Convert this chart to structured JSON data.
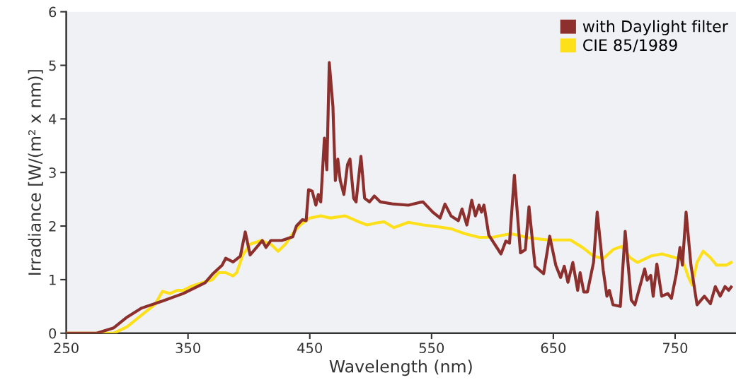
{
  "chart_data": {
    "type": "line",
    "xlabel": "Wavelength (nm)",
    "ylabel": "Irradiance [W/(m² x nm)]",
    "xlim": [
      250,
      800
    ],
    "xticks": [
      250,
      350,
      450,
      550,
      650,
      750
    ],
    "ylim": [
      0,
      6
    ],
    "yticks": [
      0,
      1,
      2,
      3,
      4,
      5,
      6
    ],
    "grid": false,
    "legend": "top right",
    "marker": "none",
    "line_style": "solid",
    "series": [
      {
        "name": "with Daylight filter",
        "color": "#8c2f2d",
        "x": [
          250,
          275,
          289,
          300,
          312,
          329,
          346,
          364,
          370,
          378,
          381,
          387,
          393,
          397,
          401,
          407,
          411,
          414,
          418,
          427,
          436,
          439,
          444,
          447,
          449,
          452,
          455,
          457,
          459,
          462,
          464,
          466,
          469,
          471,
          473,
          475,
          478,
          481,
          483,
          486,
          488,
          492,
          495,
          499,
          503,
          508,
          519,
          531,
          540,
          543,
          551,
          557,
          561,
          566,
          572,
          575,
          579,
          583,
          586,
          589,
          591,
          593,
          594,
          597,
          607,
          611,
          614,
          618,
          623,
          627,
          630,
          635,
          642,
          647,
          652,
          656,
          659,
          662,
          666,
          670,
          672,
          675,
          678,
          683,
          686,
          691,
          694,
          696,
          699,
          705,
          709,
          714,
          717,
          725,
          727,
          730,
          732,
          735,
          739,
          744,
          747,
          751,
          754,
          756,
          759,
          763,
          768,
          774,
          779,
          783,
          787,
          791,
          794,
          796
        ],
        "values": [
          0,
          0,
          0.1,
          0.3,
          0.47,
          0.6,
          0.74,
          0.94,
          1.1,
          1.27,
          1.4,
          1.33,
          1.44,
          1.89,
          1.46,
          1.62,
          1.73,
          1.6,
          1.73,
          1.73,
          1.8,
          2.0,
          2.12,
          2.1,
          2.68,
          2.65,
          2.39,
          2.59,
          2.45,
          3.64,
          3.05,
          5.05,
          4.23,
          2.85,
          3.25,
          2.85,
          2.59,
          3.15,
          3.25,
          2.52,
          2.45,
          3.3,
          2.52,
          2.45,
          2.56,
          2.45,
          2.41,
          2.39,
          2.44,
          2.45,
          2.26,
          2.15,
          2.41,
          2.19,
          2.1,
          2.32,
          2.02,
          2.48,
          2.19,
          2.39,
          2.26,
          2.39,
          2.26,
          1.83,
          1.48,
          1.72,
          1.68,
          2.95,
          1.5,
          1.56,
          2.36,
          1.25,
          1.11,
          1.81,
          1.27,
          1.04,
          1.25,
          0.95,
          1.32,
          0.8,
          1.13,
          0.77,
          0.77,
          1.32,
          2.26,
          1.17,
          0.69,
          0.8,
          0.53,
          0.5,
          1.9,
          0.62,
          0.53,
          1.2,
          0.99,
          1.08,
          0.69,
          1.29,
          0.69,
          0.74,
          0.65,
          1.11,
          1.6,
          1.27,
          2.26,
          1.27,
          0.53,
          0.69,
          0.55,
          0.87,
          0.69,
          0.87,
          0.8,
          0.86
        ]
      },
      {
        "name": "CIE 85/1989",
        "color": "#fde01a",
        "x": [
          250,
          289,
          300,
          312,
          323,
          329,
          335,
          341,
          346,
          352,
          361,
          370,
          375,
          381,
          387,
          390,
          395,
          401,
          410,
          418,
          424,
          430,
          436,
          442,
          450,
          459,
          467,
          479,
          488,
          497,
          505,
          511,
          519,
          525,
          531,
          543,
          554,
          566,
          577,
          589,
          600,
          615,
          630,
          646,
          664,
          674,
          683,
          691,
          699,
          706,
          713,
          719,
          730,
          739,
          750,
          756,
          761,
          764,
          768,
          773,
          779,
          784,
          792,
          796
        ],
        "values": [
          0,
          0,
          0.12,
          0.34,
          0.54,
          0.78,
          0.74,
          0.8,
          0.8,
          0.87,
          0.94,
          1.0,
          1.13,
          1.13,
          1.07,
          1.13,
          1.46,
          1.66,
          1.73,
          1.66,
          1.53,
          1.66,
          1.86,
          2.02,
          2.15,
          2.19,
          2.15,
          2.19,
          2.1,
          2.02,
          2.06,
          2.08,
          1.97,
          2.02,
          2.07,
          2.02,
          1.99,
          1.95,
          1.86,
          1.79,
          1.79,
          1.86,
          1.78,
          1.74,
          1.74,
          1.6,
          1.44,
          1.39,
          1.56,
          1.62,
          1.41,
          1.32,
          1.44,
          1.48,
          1.41,
          1.37,
          1.04,
          0.9,
          1.32,
          1.53,
          1.41,
          1.27,
          1.27,
          1.32
        ]
      }
    ]
  }
}
